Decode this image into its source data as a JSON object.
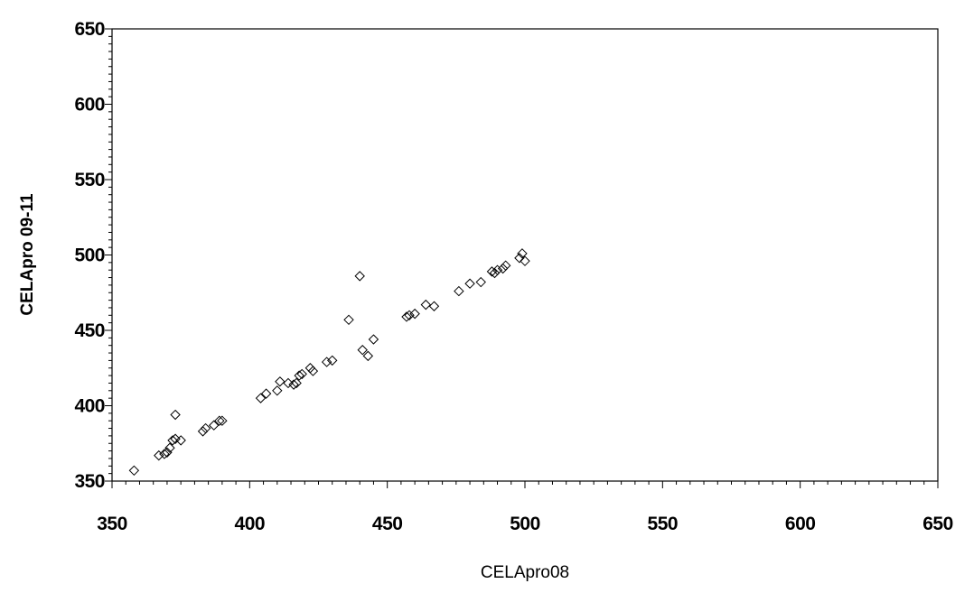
{
  "chart_data": {
    "type": "scatter",
    "xlabel": "CELApro08",
    "ylabel": "CELApro 09-11",
    "xlim": [
      350,
      650
    ],
    "ylim": [
      350,
      650
    ],
    "x_ticks": [
      350,
      400,
      450,
      500,
      550,
      600,
      650
    ],
    "y_ticks": [
      350,
      400,
      450,
      500,
      550,
      600,
      650
    ],
    "marker": "diamond-open",
    "grid": false,
    "points": [
      [
        358,
        357
      ],
      [
        367,
        367
      ],
      [
        369,
        368
      ],
      [
        370,
        369
      ],
      [
        371,
        372
      ],
      [
        372,
        377
      ],
      [
        373,
        378
      ],
      [
        373,
        394
      ],
      [
        375,
        377
      ],
      [
        383,
        383
      ],
      [
        384,
        385
      ],
      [
        387,
        387
      ],
      [
        389,
        390
      ],
      [
        390,
        390
      ],
      [
        404,
        405
      ],
      [
        406,
        408
      ],
      [
        410,
        410
      ],
      [
        411,
        416
      ],
      [
        414,
        415
      ],
      [
        416,
        414
      ],
      [
        417,
        415
      ],
      [
        418,
        420
      ],
      [
        419,
        421
      ],
      [
        422,
        425
      ],
      [
        423,
        423
      ],
      [
        428,
        429
      ],
      [
        430,
        430
      ],
      [
        436,
        457
      ],
      [
        440,
        486
      ],
      [
        441,
        437
      ],
      [
        443,
        433
      ],
      [
        445,
        444
      ],
      [
        457,
        459
      ],
      [
        458,
        460
      ],
      [
        460,
        461
      ],
      [
        464,
        467
      ],
      [
        467,
        466
      ],
      [
        476,
        476
      ],
      [
        480,
        481
      ],
      [
        484,
        482
      ],
      [
        488,
        489
      ],
      [
        489,
        488
      ],
      [
        490,
        490
      ],
      [
        492,
        491
      ],
      [
        493,
        493
      ],
      [
        498,
        498
      ],
      [
        499,
        501
      ],
      [
        500,
        496
      ]
    ]
  }
}
